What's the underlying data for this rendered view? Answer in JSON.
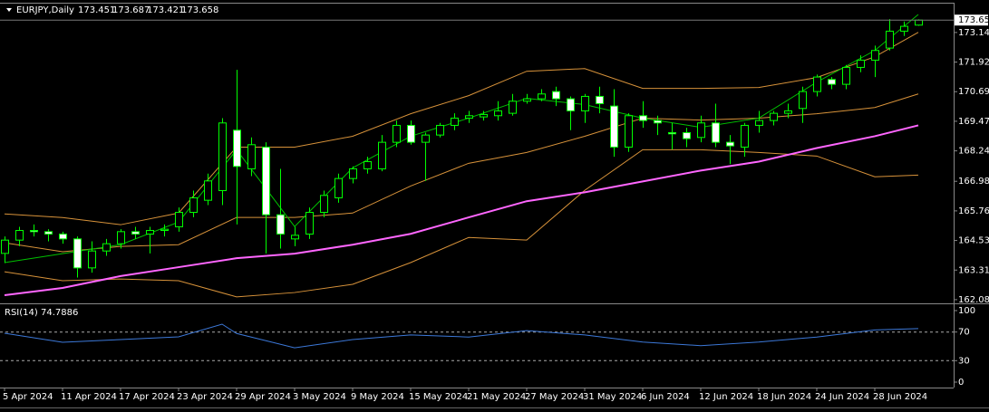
{
  "chart_data": [
    {
      "type": "candlestick",
      "title": "EURJPY,Daily",
      "categories": [
        "5 Apr 2024",
        null,
        null,
        null,
        "11 Apr 2024",
        null,
        null,
        null,
        "17 Apr 2024",
        null,
        null,
        null,
        "23 Apr 2024",
        null,
        null,
        null,
        "29 Apr 2024",
        null,
        null,
        null,
        "3 May 2024",
        null,
        null,
        null,
        "9 May 2024",
        null,
        null,
        null,
        "15 May 2024",
        null,
        null,
        null,
        "21 May 2024",
        null,
        null,
        null,
        "27 May 2024",
        null,
        null,
        null,
        "31 May 2024",
        null,
        null,
        null,
        "6 Jun 2024",
        null,
        null,
        null,
        "12 Jun 2024",
        null,
        null,
        null,
        "18 Jun 2024",
        null,
        null,
        null,
        "24 Jun 2024",
        null,
        null,
        null,
        "28 Jun 2024",
        null,
        null,
        null
      ],
      "open": [
        164.0,
        164.55,
        164.95,
        164.9,
        164.8,
        164.6,
        163.4,
        164.1,
        164.4,
        164.9,
        164.8,
        164.95,
        165.1,
        165.7,
        166.2,
        166.6,
        169.1,
        167.5,
        168.4,
        165.6,
        164.6,
        164.8,
        165.7,
        166.3,
        167.1,
        167.5,
        167.5,
        168.6,
        169.3,
        168.6,
        168.9,
        169.3,
        169.6,
        169.65,
        169.7,
        169.8,
        170.3,
        170.4,
        170.7,
        170.4,
        169.9,
        170.5,
        170.1,
        168.4,
        169.7,
        169.5,
        169.0,
        169.0,
        168.8,
        169.4,
        168.6,
        168.4,
        169.3,
        169.5,
        169.8,
        170.0,
        170.7,
        171.2,
        171.0,
        171.7,
        172.0,
        172.5,
        173.2,
        173.451
      ],
      "high": [
        164.7,
        165.1,
        165.2,
        165.0,
        164.9,
        164.7,
        164.5,
        164.6,
        165.0,
        165.1,
        165.1,
        165.2,
        165.9,
        166.6,
        167.3,
        169.6,
        171.6,
        168.8,
        168.6,
        167.5,
        165.1,
        165.9,
        166.6,
        167.3,
        167.6,
        168.0,
        168.9,
        169.5,
        169.5,
        169.0,
        169.4,
        169.8,
        169.9,
        169.9,
        170.3,
        170.6,
        170.6,
        170.8,
        170.9,
        170.5,
        170.6,
        170.9,
        170.8,
        169.8,
        170.3,
        169.7,
        169.4,
        169.2,
        169.7,
        170.2,
        168.9,
        169.4,
        169.9,
        169.9,
        170.2,
        170.9,
        171.4,
        171.3,
        171.8,
        172.2,
        172.6,
        173.7,
        173.6,
        173.687
      ],
      "low": [
        163.6,
        164.3,
        164.7,
        164.5,
        164.4,
        163.0,
        163.2,
        163.9,
        164.2,
        164.6,
        164.0,
        164.7,
        164.9,
        165.5,
        166.0,
        166.0,
        165.2,
        167.2,
        164.0,
        164.2,
        164.3,
        164.6,
        165.5,
        166.1,
        166.9,
        167.3,
        167.4,
        168.4,
        168.5,
        167.0,
        168.8,
        169.1,
        169.4,
        169.5,
        169.5,
        169.7,
        170.2,
        170.3,
        170.1,
        169.1,
        169.4,
        169.8,
        168.0,
        168.2,
        169.2,
        168.9,
        168.3,
        168.4,
        168.6,
        168.4,
        167.7,
        168.0,
        169.0,
        169.3,
        169.6,
        169.4,
        170.5,
        170.8,
        170.8,
        171.5,
        171.3,
        172.4,
        173.0,
        173.421
      ],
      "close": [
        164.55,
        164.95,
        164.9,
        164.8,
        164.6,
        163.4,
        164.1,
        164.4,
        164.9,
        164.8,
        164.95,
        165.0,
        165.7,
        166.3,
        167.0,
        169.4,
        167.6,
        168.5,
        165.6,
        164.8,
        164.75,
        165.7,
        166.4,
        167.1,
        167.5,
        167.8,
        168.6,
        169.3,
        168.6,
        168.9,
        169.3,
        169.6,
        169.7,
        169.75,
        169.9,
        170.3,
        170.4,
        170.6,
        170.4,
        169.9,
        170.5,
        170.2,
        168.4,
        169.7,
        169.5,
        169.4,
        168.95,
        168.75,
        169.4,
        168.6,
        168.45,
        169.3,
        169.5,
        169.8,
        169.9,
        170.7,
        171.3,
        171.0,
        171.7,
        172.0,
        172.4,
        173.2,
        173.4,
        173.658
      ],
      "color": "#00ff00",
      "bull_fill": "#000000",
      "bear_fill": "#ffffff",
      "ylim": [
        161.97,
        174.34
      ],
      "yticks": [
        173.145,
        {
          "value": 171.92,
          "label": "171.920"
        },
        170.695,
        {
          "value": 169.47,
          "label": "169.470"
        },
        168.245,
        166.985,
        {
          "value": 165.76,
          "label": "165.760"
        },
        164.535,
        {
          "value": 163.31,
          "label": "163.310"
        },
        162.085
      ],
      "overlays": [
        {
          "color": "#d7923a",
          "width": 1,
          "x": [
            0,
            4,
            8,
            12,
            16,
            20,
            24,
            28,
            32,
            36,
            40,
            44,
            48,
            52,
            56,
            60,
            63
          ],
          "values": [
            165.635,
            165.486,
            165.187,
            165.672,
            168.4,
            168.4,
            168.85,
            169.78,
            170.53,
            171.54,
            171.65,
            170.83,
            170.83,
            170.87,
            171.28,
            172.14,
            173.15
          ]
        },
        {
          "color": "#d7923a",
          "width": 1,
          "x": [
            0,
            4,
            8,
            12,
            16,
            20,
            24,
            28,
            32,
            36,
            40,
            44,
            48,
            52,
            56,
            60,
            63
          ],
          "values": [
            164.44,
            164.07,
            164.29,
            164.36,
            165.49,
            165.49,
            165.67,
            166.79,
            167.73,
            168.18,
            168.85,
            169.6,
            169.52,
            169.6,
            169.78,
            170.04,
            170.6
          ]
        },
        {
          "color": "#d7923a",
          "width": 1,
          "x": [
            0,
            4,
            8,
            12,
            16,
            20,
            24,
            28,
            32,
            36,
            40,
            44,
            48,
            52,
            56,
            60,
            63
          ],
          "values": [
            163.24,
            162.87,
            162.94,
            162.87,
            162.2,
            162.38,
            162.72,
            163.62,
            164.66,
            164.55,
            166.61,
            168.29,
            168.29,
            168.18,
            168.03,
            167.17,
            167.24
          ]
        },
        {
          "color": "#ff66ff",
          "width": 2,
          "x": [
            0,
            4,
            8,
            12,
            16,
            20,
            24,
            28,
            32,
            36,
            40,
            44,
            48,
            52,
            56,
            60,
            63
          ],
          "values": [
            162.27,
            162.57,
            163.06,
            163.43,
            163.8,
            163.99,
            164.36,
            164.81,
            165.49,
            166.16,
            166.53,
            166.98,
            167.43,
            167.8,
            168.36,
            168.85,
            169.3
          ]
        },
        {
          "color": "#00c000",
          "width": 1,
          "x": [
            0,
            4,
            8,
            12,
            16,
            20,
            24,
            28,
            32,
            36,
            40,
            44,
            48,
            52,
            56,
            60,
            63
          ],
          "values": [
            163.62,
            163.99,
            164.36,
            165.3,
            168.29,
            165.11,
            167.54,
            168.85,
            169.6,
            170.42,
            170.16,
            169.6,
            169.22,
            169.6,
            171.09,
            172.4,
            173.89
          ]
        }
      ]
    },
    {
      "type": "line",
      "title": "RSI(14)",
      "color": "#3c78d8",
      "x": [
        0,
        4,
        8,
        12,
        15,
        16,
        20,
        24,
        28,
        32,
        36,
        40,
        44,
        48,
        52,
        56,
        60,
        63
      ],
      "values": [
        68.4,
        55.7,
        59.5,
        63.3,
        81,
        68,
        48,
        59.5,
        66,
        63,
        72,
        66,
        56,
        51,
        56,
        63,
        73,
        74.7886
      ],
      "ylim": [
        -7.6,
        107.6
      ],
      "yticks": [
        100,
        70,
        30,
        0
      ],
      "levels": [
        70,
        30
      ]
    }
  ]
}
